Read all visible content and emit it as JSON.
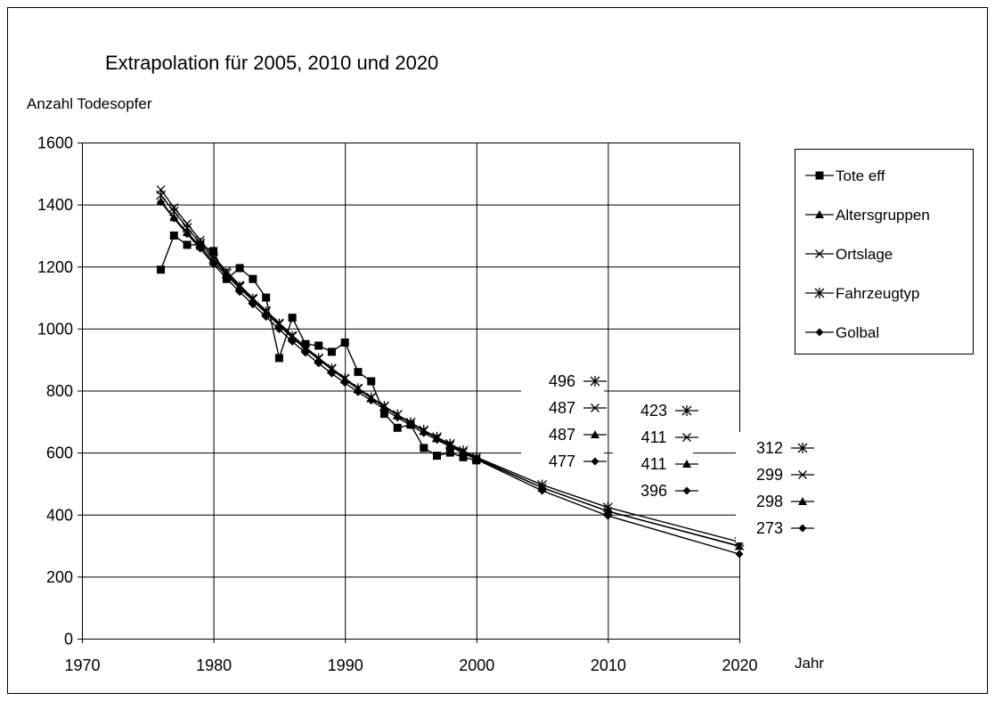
{
  "chart_data": {
    "type": "line",
    "title": "Extrapolation für 2005, 2010 und 2020",
    "ylabel": "Anzahl Todesopfer",
    "xlabel": "Jahr",
    "xlim": [
      1970,
      2020
    ],
    "ylim": [
      0,
      1600
    ],
    "xticks": [
      1970,
      1980,
      1990,
      2000,
      2010,
      2020
    ],
    "yticks": [
      0,
      200,
      400,
      600,
      800,
      1000,
      1200,
      1400,
      1600
    ],
    "grid": "horizontal",
    "legend_position": "right",
    "series": [
      {
        "name": "Tote eff",
        "marker": "square",
        "x": [
          1976,
          1977,
          1978,
          1979,
          1980,
          1981,
          1982,
          1983,
          1984,
          1985,
          1986,
          1987,
          1988,
          1989,
          1990,
          1991,
          1992,
          1993,
          1994,
          1995,
          1996,
          1997,
          1998,
          1999,
          2000
        ],
        "values": [
          1190,
          1300,
          1270,
          1270,
          1250,
          1160,
          1195,
          1160,
          1100,
          905,
          1035,
          950,
          945,
          925,
          955,
          860,
          830,
          725,
          680,
          690,
          615,
          590,
          600,
          585,
          575
        ]
      },
      {
        "name": "Altersgruppen",
        "marker": "triangle",
        "x": [
          1976,
          1977,
          1978,
          1979,
          1980,
          1981,
          1982,
          1983,
          1984,
          1985,
          1986,
          1987,
          1988,
          1989,
          1990,
          1991,
          1992,
          1993,
          1994,
          1995,
          1996,
          1997,
          1998,
          1999,
          2000,
          2005,
          2010,
          2020
        ],
        "values": [
          1410,
          1358,
          1310,
          1265,
          1215,
          1172,
          1130,
          1090,
          1050,
          1010,
          970,
          935,
          900,
          868,
          836,
          805,
          775,
          748,
          720,
          695,
          670,
          648,
          625,
          603,
          583,
          487,
          411,
          298
        ]
      },
      {
        "name": "Ortslage",
        "marker": "x",
        "x": [
          1976,
          1977,
          1978,
          1979,
          1980,
          1981,
          1982,
          1983,
          1984,
          1985,
          1986,
          1987,
          1988,
          1989,
          1990,
          1991,
          1992,
          1993,
          1994,
          1995,
          1996,
          1997,
          1998,
          1999,
          2000,
          2005,
          2010,
          2020
        ],
        "values": [
          1448,
          1390,
          1338,
          1285,
          1233,
          1185,
          1140,
          1098,
          1058,
          1018,
          978,
          940,
          905,
          872,
          840,
          808,
          778,
          750,
          722,
          696,
          670,
          646,
          623,
          601,
          580,
          487,
          411,
          299
        ]
      },
      {
        "name": "Fahrzeugtyp",
        "marker": "star",
        "x": [
          1976,
          1977,
          1978,
          1979,
          1980,
          1981,
          1982,
          1983,
          1984,
          1985,
          1986,
          1987,
          1988,
          1989,
          1990,
          1991,
          1992,
          1993,
          1994,
          1995,
          1996,
          1997,
          1998,
          1999,
          2000,
          2005,
          2010,
          2020
        ],
        "values": [
          1430,
          1378,
          1325,
          1275,
          1225,
          1178,
          1135,
          1095,
          1055,
          1015,
          975,
          938,
          903,
          870,
          838,
          806,
          777,
          749,
          722,
          697,
          672,
          650,
          628,
          606,
          585,
          496,
          423,
          312
        ]
      },
      {
        "name": "Golbal",
        "marker": "diamond",
        "x": [
          1976,
          1977,
          1978,
          1979,
          1980,
          1981,
          1982,
          1983,
          1984,
          1985,
          1986,
          1987,
          1988,
          1989,
          1990,
          1991,
          1992,
          1993,
          1994,
          1995,
          1996,
          1997,
          1998,
          1999,
          2000,
          2005,
          2010,
          2020
        ],
        "values": [
          1408,
          1355,
          1305,
          1258,
          1208,
          1162,
          1118,
          1078,
          1038,
          998,
          958,
          922,
          888,
          855,
          825,
          795,
          768,
          740,
          713,
          688,
          663,
          641,
          620,
          598,
          578,
          477,
          396,
          273
        ]
      }
    ],
    "annotations": {
      "y2005": [
        {
          "value": "496",
          "series": "Fahrzeugtyp"
        },
        {
          "value": "487",
          "series": "Ortslage"
        },
        {
          "value": "487",
          "series": "Altersgruppen"
        },
        {
          "value": "477",
          "series": "Golbal"
        }
      ],
      "y2010": [
        {
          "value": "423",
          "series": "Fahrzeugtyp"
        },
        {
          "value": "411",
          "series": "Ortslage"
        },
        {
          "value": "411",
          "series": "Altersgruppen"
        },
        {
          "value": "396",
          "series": "Golbal"
        }
      ],
      "y2020": [
        {
          "value": "312",
          "series": "Fahrzeugtyp"
        },
        {
          "value": "299",
          "series": "Ortslage"
        },
        {
          "value": "298",
          "series": "Altersgruppen"
        },
        {
          "value": "273",
          "series": "Golbal"
        }
      ]
    }
  }
}
